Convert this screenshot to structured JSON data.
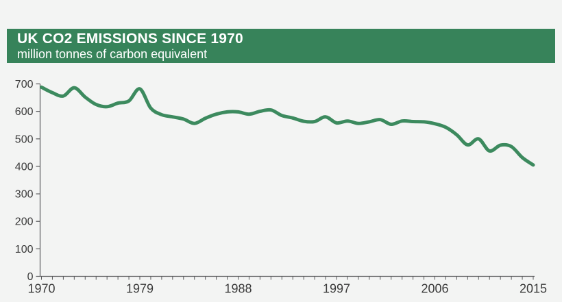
{
  "header": {
    "title": "UK CO2 EMISSIONS SINCE 1970",
    "subtitle": "million tonnes of carbon equivalent"
  },
  "colors": {
    "banner_green": "#37835a",
    "line_green": "#3c8a5e",
    "background": "#f3f4f3",
    "axis": "#58595b",
    "tick_label": "#3b3b3b",
    "banner_text": "#ffffff"
  },
  "chart_data": {
    "type": "line",
    "title": "UK CO2 EMISSIONS SINCE 1970",
    "subtitle": "million tonnes of carbon equivalent",
    "ylabel": "million tonnes of carbon equivalent",
    "x": [
      1970,
      1971,
      1972,
      1973,
      1974,
      1975,
      1976,
      1977,
      1978,
      1979,
      1980,
      1981,
      1982,
      1983,
      1984,
      1985,
      1986,
      1987,
      1988,
      1989,
      1990,
      1991,
      1992,
      1993,
      1994,
      1995,
      1996,
      1997,
      1998,
      1999,
      2000,
      2001,
      2002,
      2003,
      2004,
      2005,
      2006,
      2007,
      2008,
      2009,
      2010,
      2011,
      2012,
      2013,
      2014,
      2015
    ],
    "values": [
      688,
      668,
      656,
      686,
      652,
      625,
      617,
      630,
      638,
      682,
      612,
      588,
      580,
      572,
      556,
      575,
      590,
      598,
      598,
      590,
      600,
      605,
      585,
      576,
      564,
      563,
      580,
      558,
      565,
      556,
      562,
      570,
      553,
      565,
      563,
      562,
      555,
      542,
      515,
      478,
      500,
      456,
      477,
      472,
      432,
      405
    ],
    "xlim": [
      1970,
      2015
    ],
    "ylim": [
      0,
      700
    ],
    "y_ticks": [
      0,
      100,
      200,
      300,
      400,
      500,
      600,
      700
    ],
    "x_tick_labels": [
      1970,
      1979,
      1988,
      1997,
      2006,
      2015
    ],
    "x_minor_tick_every": 1,
    "grid": false,
    "legend": "none",
    "line_width": 5
  }
}
